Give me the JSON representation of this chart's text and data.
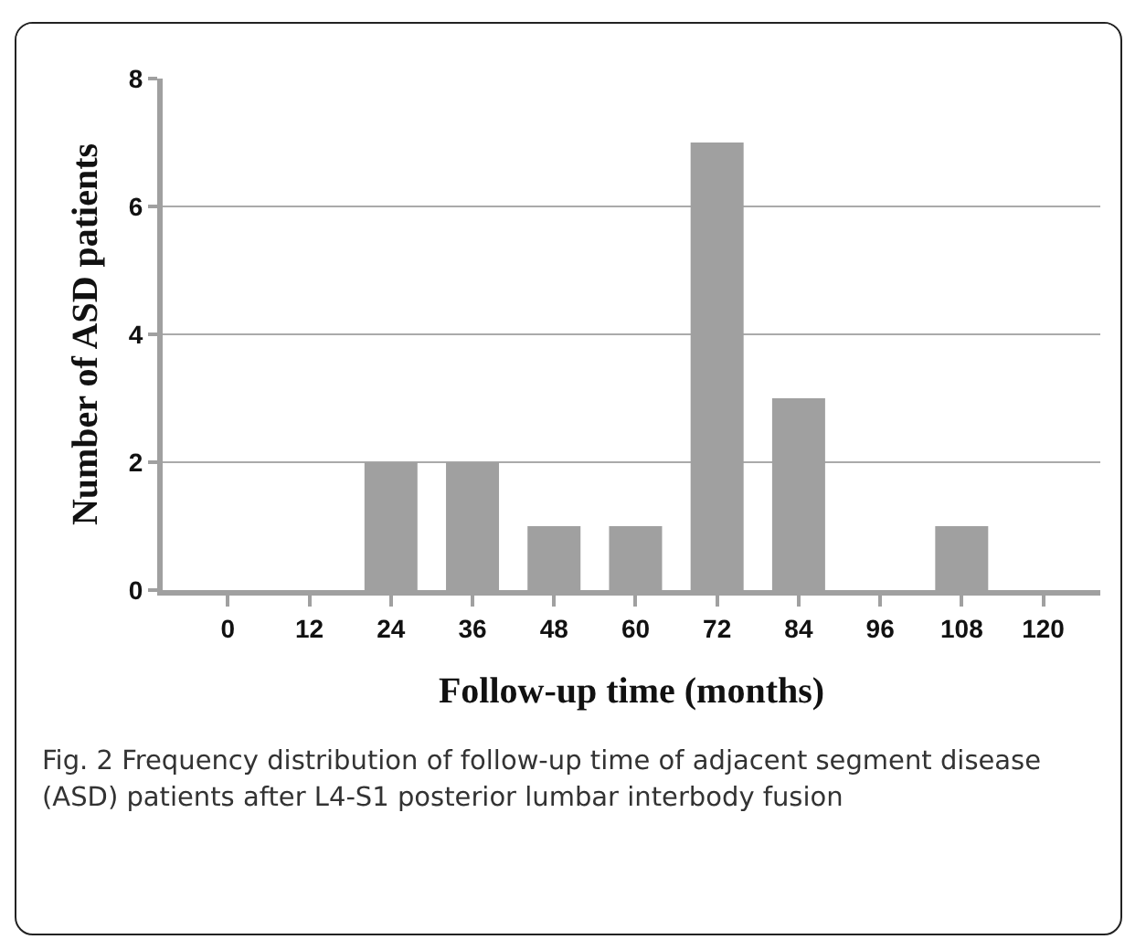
{
  "chart_data": {
    "type": "bar",
    "xlabel": "Follow-up time (months)",
    "ylabel": "Number of ASD patients",
    "categories": [
      "0",
      "12",
      "24",
      "36",
      "48",
      "60",
      "72",
      "84",
      "96",
      "108",
      "120"
    ],
    "values": [
      0,
      0,
      2,
      2,
      1,
      1,
      7,
      3,
      0,
      1,
      0
    ],
    "color": "#a0a0a0",
    "ylim": [
      0,
      8
    ],
    "yticks": [
      0,
      2,
      4,
      6,
      8
    ],
    "grid": "y",
    "annotations": [
      "Fig. 2 Frequency distribution of follow-up time of adjacent segment disease (ASD) patients after L4-S1 posterior lumbar interbody fusion"
    ]
  }
}
